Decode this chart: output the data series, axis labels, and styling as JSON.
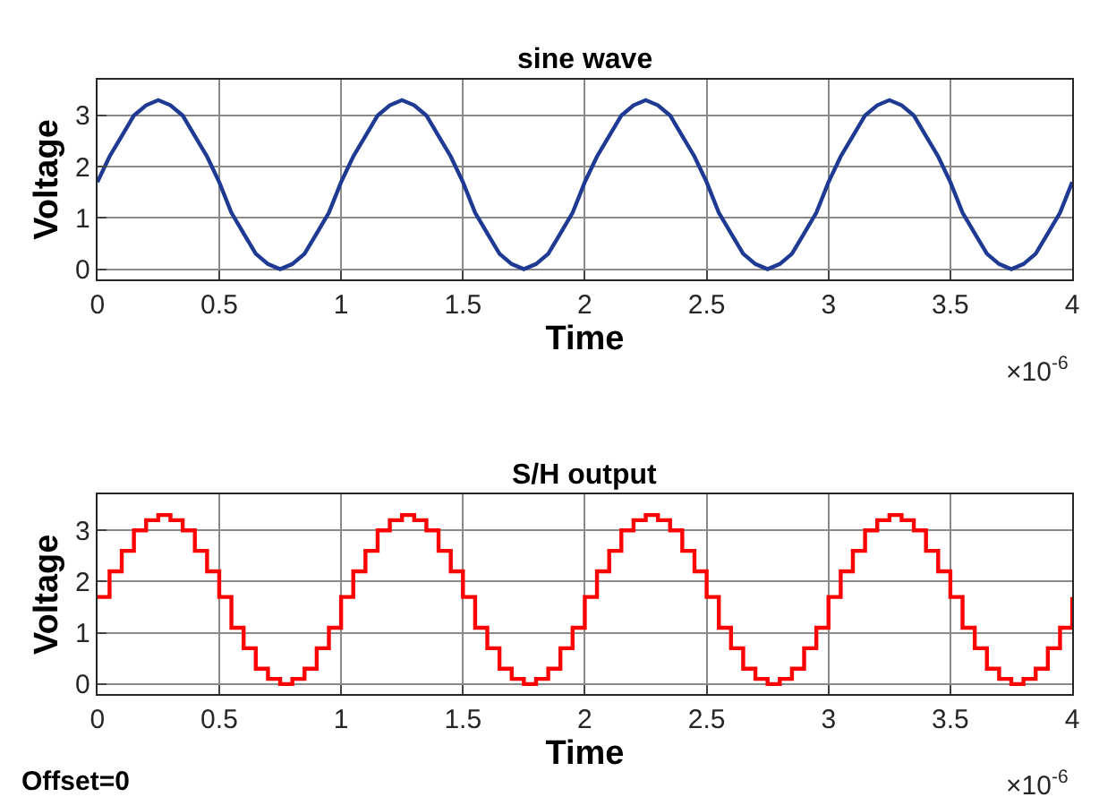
{
  "chart_data": [
    {
      "type": "line",
      "title": "sine wave",
      "xlabel": "Time",
      "ylabel": "Voltage",
      "x": [
        0,
        0.05,
        0.1,
        0.15,
        0.2,
        0.25,
        0.3,
        0.35,
        0.4,
        0.45,
        0.5,
        0.55,
        0.6,
        0.65,
        0.7,
        0.75,
        0.8,
        0.85,
        0.9,
        0.95,
        1,
        1.05,
        1.1,
        1.15,
        1.2,
        1.25,
        1.3,
        1.35,
        1.4,
        1.45,
        1.5,
        1.55,
        1.6,
        1.65,
        1.7,
        1.75,
        1.8,
        1.85,
        1.9,
        1.95,
        2,
        2.05,
        2.1,
        2.15,
        2.2,
        2.25,
        2.3,
        2.35,
        2.4,
        2.45,
        2.5,
        2.55,
        2.6,
        2.65,
        2.7,
        2.75,
        2.8,
        2.85,
        2.9,
        2.95,
        3,
        3.05,
        3.1,
        3.15,
        3.2,
        3.25,
        3.3,
        3.35,
        3.4,
        3.45,
        3.5,
        3.55,
        3.6,
        3.65,
        3.7,
        3.75,
        3.8,
        3.85,
        3.9,
        3.95,
        4
      ],
      "series": [
        {
          "color": "#1f3a93",
          "values": [
            1.7,
            2.2,
            2.6,
            3.0,
            3.2,
            3.3,
            3.2,
            3.0,
            2.6,
            2.2,
            1.7,
            1.1,
            0.7,
            0.3,
            0.1,
            0,
            0.1,
            0.3,
            0.7,
            1.1,
            1.7,
            2.2,
            2.6,
            3.0,
            3.2,
            3.3,
            3.2,
            3.0,
            2.6,
            2.2,
            1.7,
            1.1,
            0.7,
            0.3,
            0.1,
            0,
            0.1,
            0.3,
            0.7,
            1.1,
            1.7,
            2.2,
            2.6,
            3.0,
            3.2,
            3.3,
            3.2,
            3.0,
            2.6,
            2.2,
            1.7,
            1.1,
            0.7,
            0.3,
            0.1,
            0,
            0.1,
            0.3,
            0.7,
            1.1,
            1.7,
            2.2,
            2.6,
            3.0,
            3.2,
            3.3,
            3.2,
            3.0,
            2.6,
            2.2,
            1.7,
            1.1,
            0.7,
            0.3,
            0.1,
            0,
            0.1,
            0.3,
            0.7,
            1.1,
            1.7
          ]
        }
      ],
      "xlim": [
        0,
        4
      ],
      "xticks": [
        0,
        0.5,
        1,
        1.5,
        2,
        2.5,
        3,
        3.5,
        4
      ],
      "ylim": [
        -0.2,
        3.7
      ],
      "yticks": [
        0,
        1,
        2,
        3
      ],
      "grid": true,
      "annotations": [
        "×10$^{-6}$"
      ]
    },
    {
      "type": "step",
      "title": "S/H output",
      "xlabel": "Time",
      "ylabel": "Voltage",
      "x": [
        0,
        0.05,
        0.1,
        0.15,
        0.2,
        0.25,
        0.3,
        0.35,
        0.4,
        0.45,
        0.5,
        0.55,
        0.6,
        0.65,
        0.7,
        0.75,
        0.8,
        0.85,
        0.9,
        0.95,
        1,
        1.05,
        1.1,
        1.15,
        1.2,
        1.25,
        1.3,
        1.35,
        1.4,
        1.45,
        1.5,
        1.55,
        1.6,
        1.65,
        1.7,
        1.75,
        1.8,
        1.85,
        1.9,
        1.95,
        2,
        2.05,
        2.1,
        2.15,
        2.2,
        2.25,
        2.3,
        2.35,
        2.4,
        2.45,
        2.5,
        2.55,
        2.6,
        2.65,
        2.7,
        2.75,
        2.8,
        2.85,
        2.9,
        2.95,
        3,
        3.05,
        3.1,
        3.15,
        3.2,
        3.25,
        3.3,
        3.35,
        3.4,
        3.45,
        3.5,
        3.55,
        3.6,
        3.65,
        3.7,
        3.75,
        3.8,
        3.85,
        3.9,
        3.95,
        4
      ],
      "series": [
        {
          "color": "#ff0000",
          "values": [
            1.7,
            2.2,
            2.6,
            3.0,
            3.2,
            3.3,
            3.2,
            3.0,
            2.6,
            2.2,
            1.7,
            1.1,
            0.7,
            0.3,
            0.1,
            0,
            0.1,
            0.3,
            0.7,
            1.1,
            1.7,
            2.2,
            2.6,
            3.0,
            3.2,
            3.3,
            3.2,
            3.0,
            2.6,
            2.2,
            1.7,
            1.1,
            0.7,
            0.3,
            0.1,
            0,
            0.1,
            0.3,
            0.7,
            1.1,
            1.7,
            2.2,
            2.6,
            3.0,
            3.2,
            3.3,
            3.2,
            3.0,
            2.6,
            2.2,
            1.7,
            1.1,
            0.7,
            0.3,
            0.1,
            0,
            0.1,
            0.3,
            0.7,
            1.1,
            1.7,
            2.2,
            2.6,
            3.0,
            3.2,
            3.3,
            3.2,
            3.0,
            2.6,
            2.2,
            1.7,
            1.1,
            0.7,
            0.3,
            0.1,
            0,
            0.1,
            0.3,
            0.7,
            1.1,
            1.7
          ]
        }
      ],
      "xlim": [
        0,
        4
      ],
      "xticks": [
        0,
        0.5,
        1,
        1.5,
        2,
        2.5,
        3,
        3.5,
        4
      ],
      "ylim": [
        -0.2,
        3.7
      ],
      "yticks": [
        0,
        1,
        2,
        3
      ],
      "grid": true,
      "annotations": [
        "×10$^{-6}$",
        "Offset=0"
      ]
    }
  ]
}
